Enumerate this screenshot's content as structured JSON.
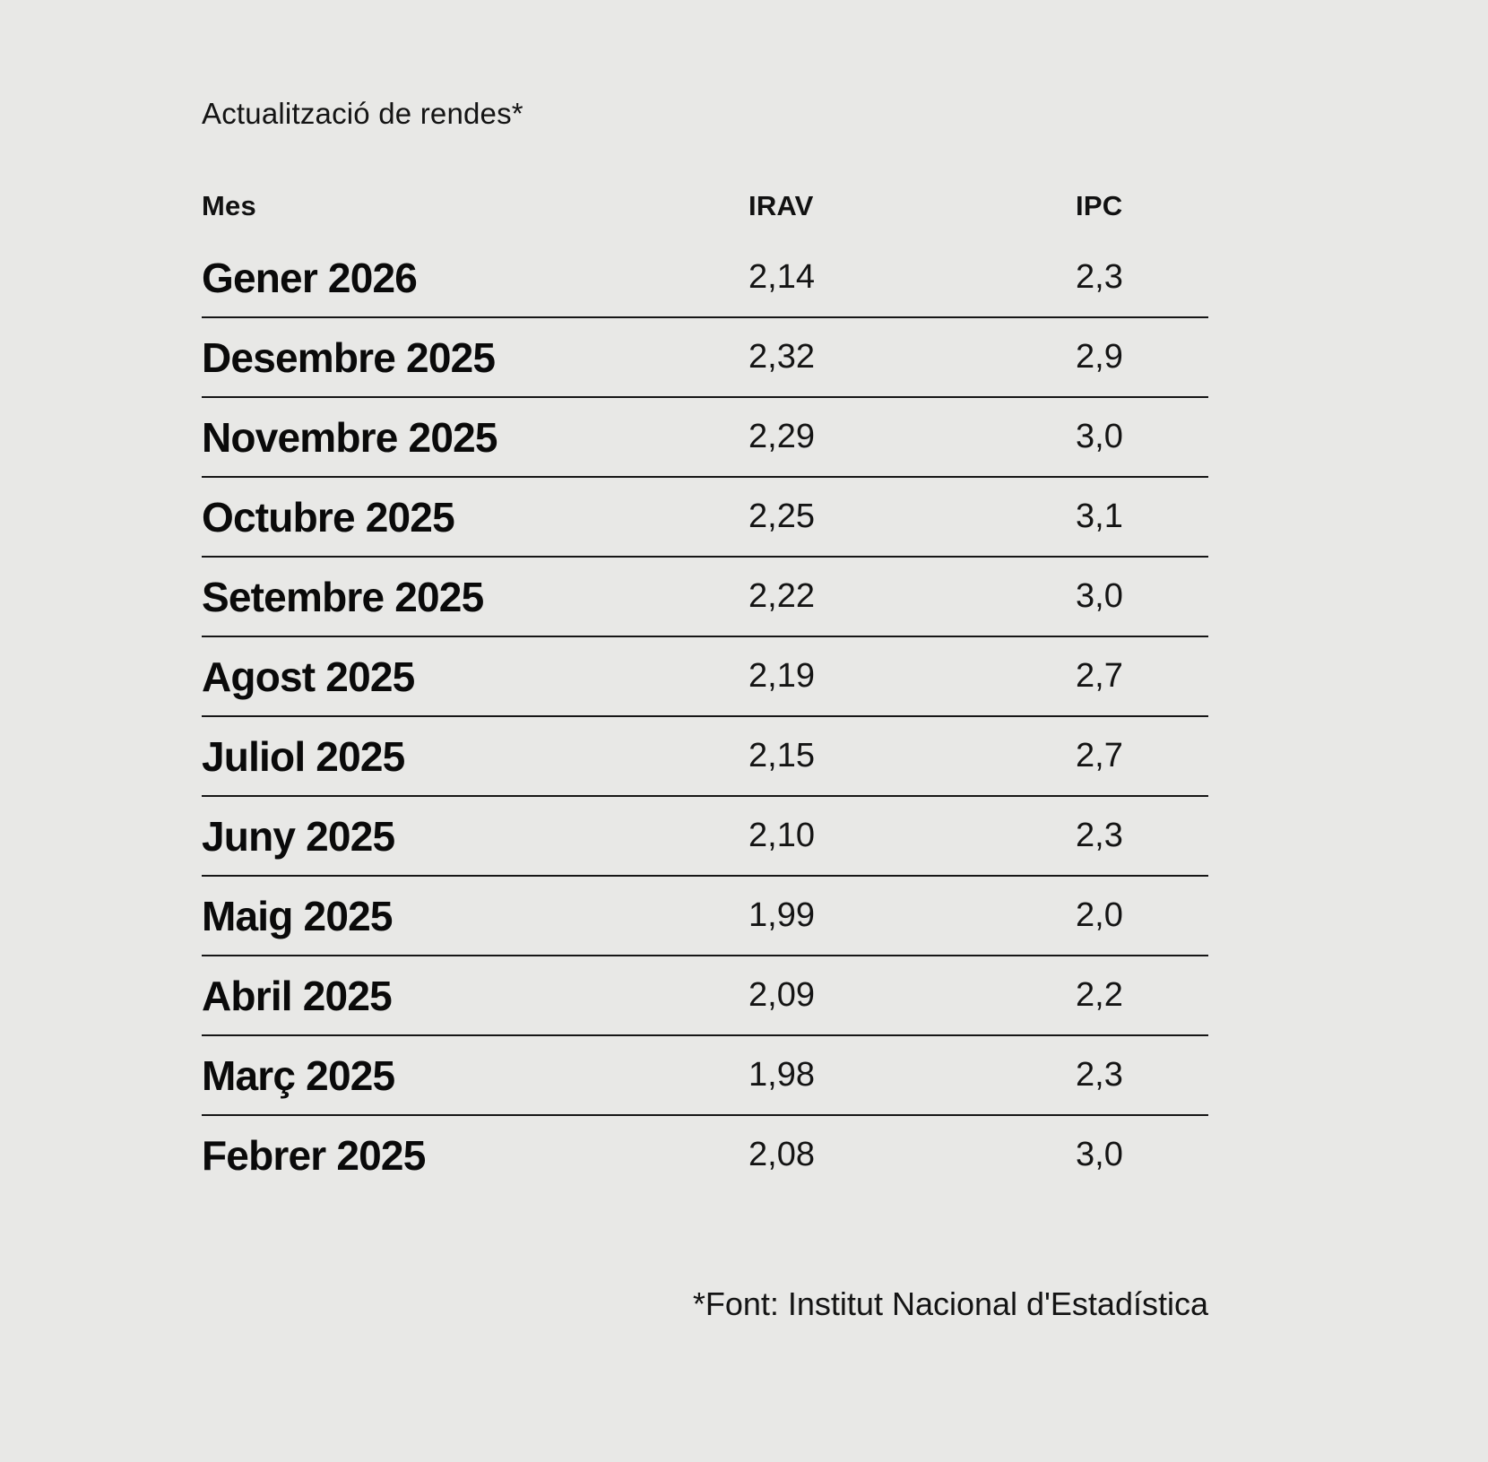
{
  "title": "Actualització de rendes*",
  "source_note": "*Font: Institut Nacional d'Estadística",
  "chart_data": {
    "type": "table",
    "title": "Actualització de rendes*",
    "columns": [
      "Mes",
      "IRAV",
      "IPC"
    ],
    "rows": [
      {
        "mes": "Gener 2026",
        "irav": "2,14",
        "ipc": "2,3"
      },
      {
        "mes": "Desembre 2025",
        "irav": "2,32",
        "ipc": "2,9"
      },
      {
        "mes": "Novembre 2025",
        "irav": "2,29",
        "ipc": "3,0"
      },
      {
        "mes": "Octubre 2025",
        "irav": "2,25",
        "ipc": "3,1"
      },
      {
        "mes": "Setembre 2025",
        "irav": "2,22",
        "ipc": "3,0"
      },
      {
        "mes": "Agost 2025",
        "irav": "2,19",
        "ipc": "2,7"
      },
      {
        "mes": "Juliol 2025",
        "irav": "2,15",
        "ipc": "2,7"
      },
      {
        "mes": "Juny 2025",
        "irav": "2,10",
        "ipc": "2,3"
      },
      {
        "mes": "Maig 2025",
        "irav": "1,99",
        "ipc": "2,0"
      },
      {
        "mes": "Abril 2025",
        "irav": "2,09",
        "ipc": "2,2"
      },
      {
        "mes": "Març 2025",
        "irav": "1,98",
        "ipc": "2,3"
      },
      {
        "mes": "Febrer 2025",
        "irav": "2,08",
        "ipc": "3,0"
      }
    ],
    "source_note": "*Font: Institut Nacional d'Estadística",
    "layout": {
      "grid": "horizontal-rules-between-rows",
      "legend_position": "none"
    }
  },
  "colors": {
    "background": "#e8e8e6",
    "text": "#0f0f0f",
    "rule": "#161616"
  }
}
